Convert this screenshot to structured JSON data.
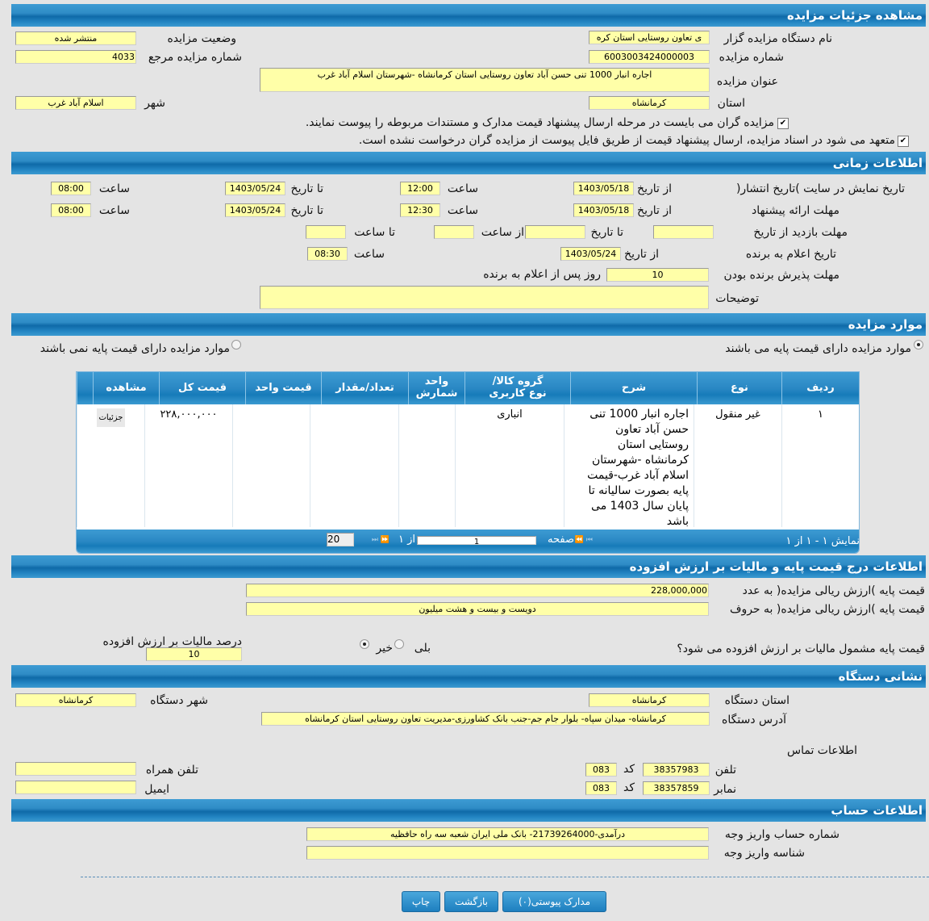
{
  "sections": {
    "details": "مشاهده جزئیات مزایده",
    "time": "اطلاعات زمانی",
    "items": "موارد مزایده",
    "price": "اطلاعات درج قیمت پایه و مالیات بر ارزش افزوده",
    "address": "نشانی دستگاه",
    "account": "اطلاعات حساب"
  },
  "details": {
    "org_label": "نام دستگاه مزایده گزار",
    "org_value": "ی تعاون روستایی استان کره",
    "status_label": "وضعیت مزایده",
    "status_value": "منتشر شده",
    "number_label": "شماره مزایده",
    "number_value": "6003003424000003",
    "ref_label": "شماره مزایده مرجع",
    "ref_value": "4033",
    "title_label": "عنوان مزایده",
    "title_value": "اجاره انبار 1000 تنی حسن آباد تعاون روستایی استان کرمانشاه -شهرستان اسلام آباد غرب",
    "province_label": "استان",
    "province_value": "کرمانشاه",
    "city_label": "شهر",
    "city_value": "اسلام آباد غرب",
    "check1": "مزایده گران می بایست در مرحله ارسال پیشنهاد قیمت مدارک و مستندات مربوطه را پیوست نمایند.",
    "check2": "متعهد می شود در اسناد مزایده، ارسال پیشنهاد قیمت از طریق فایل پیوست از مزایده گران درخواست نشده است.",
    "check1_checked": true,
    "check2_checked": true
  },
  "time": {
    "publish_label": "تاریخ نمایش در سایت )تاریخ انتشار(",
    "offer_label": "مهلت ارائه پیشنهاد",
    "from_date": "از تاریخ",
    "to_date": "تا تاریخ",
    "hour": "ساعت",
    "publish": {
      "from_date": "1403/05/18",
      "from_time": "12:00",
      "to_date": "1403/05/24",
      "to_time": "08:00"
    },
    "offer": {
      "from_date": "1403/05/18",
      "from_time": "12:30",
      "to_date": "1403/05/24",
      "to_time": "08:00"
    },
    "visit_label": "مهلت بازدید  از تاریخ",
    "visit_to_date": "تا تاریخ",
    "visit_from_time": "از ساعت",
    "visit_to_time": "تا ساعت",
    "announce_label": "تاریخ اعلام به برنده",
    "announce_date": "1403/05/24",
    "announce_time": "08:30",
    "accept_label": "مهلت پذیرش برنده بودن",
    "accept_value": "10",
    "accept_suffix": "روز پس از اعلام به برنده",
    "notes_label": "توضیحات",
    "notes_value": ""
  },
  "items": {
    "radio_has": "موارد مزایده دارای قیمت پایه می باشند",
    "radio_hasnot": "موارد مزایده دارای قیمت پایه نمی باشند",
    "selected": "has",
    "columns": [
      "ردیف",
      "نوع",
      "شرح",
      "گروه کالا/نوع کاربری",
      "واحد شمارش",
      "تعداد/مقدار",
      "قیمت واحد",
      "قیمت کل",
      "مشاهده"
    ],
    "rows": [
      {
        "row": "١",
        "type": "غیر منقول",
        "desc": "اجاره انبار 1000 تنی حسن آباد تعاون روستایی استان کرمانشاه -شهرستان اسلام آباد غرب-قیمت پایه بصورت سالیانه تا پایان سال 1403 می باشد",
        "group": "انباری",
        "unit": "",
        "qty": "",
        "unit_price": "",
        "total": "٢٢٨,٠٠٠,٠٠٠",
        "view": "جزئیات"
      }
    ],
    "pager": {
      "summary": "نمایش ١ - ١ از ١",
      "page_label": "صفحه",
      "page": "1",
      "of": "از ١",
      "page_size": "20"
    }
  },
  "price": {
    "num_label": "قیمت پایه )ارزش ریالی مزایده( به عدد",
    "num_value": "228,000,000",
    "words_label": "قیمت پایه )ارزش ریالی مزایده( به حروف",
    "words_value": "دویست و بیست و هشت میلیون",
    "vat_q": "قیمت پایه مشمول مالیات بر ارزش افزوده می شود؟",
    "yes": "بلی",
    "no": "خیر",
    "vat_selected": "no",
    "vat_pct_label": "درصد مالیات بر ارزش افزوده",
    "vat_pct": "10"
  },
  "address": {
    "prov_label": "استان دستگاه",
    "prov_value": "کرمانشاه",
    "city_label": "شهر دستگاه",
    "city_value": "کرمانشاه",
    "addr_label": "آدرس دستگاه",
    "addr_value": "کرمانشاه- میدان سپاه- بلوار جام جم-جنب بانک کشاورزی-مدیریت تعاون روستایی استان کرمانشاه",
    "contact": "اطلاعات تماس",
    "phone_label": "تلفن",
    "phone": "38357983",
    "code_label": "کد",
    "phone_code": "083",
    "fax_label": "نمابر",
    "fax": "38357859",
    "fax_code": "083",
    "mobile_label": "تلفن همراه",
    "mobile": "",
    "email_label": "ایمیل",
    "email": ""
  },
  "account": {
    "acc_label": "شماره حساب واریز وجه",
    "acc_value": "درآمدی-21739264000- بانک ملی ایران شعبه سه راه حافظیه",
    "id_label": "شناسه واریز وجه",
    "id_value": ""
  },
  "buttons": {
    "attachments": "مدارک پیوستی(۰)",
    "back": "بازگشت",
    "print": "چاپ"
  }
}
